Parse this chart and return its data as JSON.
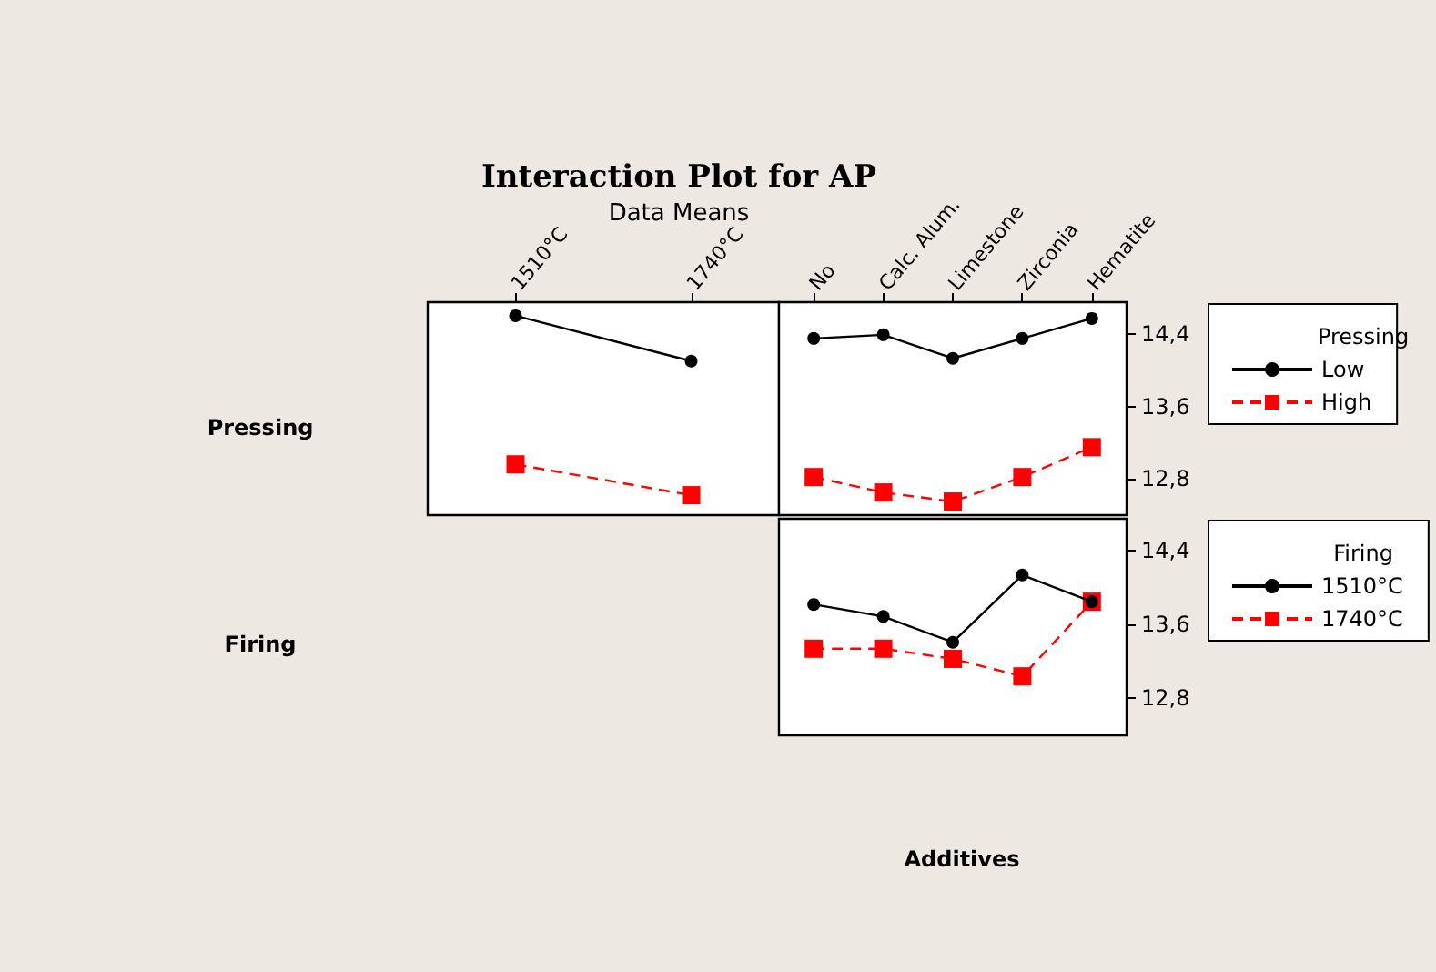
{
  "chart_data": [
    {
      "type": "line",
      "title": "Interaction Plot for AP",
      "subtitle": "Data Means",
      "ylabel": "Pressing",
      "categories": [
        "1510°C",
        "1740°C"
      ],
      "series": [
        {
          "color": "#000000",
          "marker": "circle",
          "line_style": "solid",
          "values": [
            14.6,
            14.1
          ]
        },
        {
          "color": "#ff0000",
          "marker": "square",
          "line_style": "dashed",
          "values": [
            12.96,
            12.62
          ]
        }
      ],
      "ylim": [
        12.4,
        14.75
      ],
      "tick_labels": "x",
      "grid": false,
      "legend": false
    },
    {
      "type": "line",
      "legend_title": "Pressing",
      "categories": [
        "No",
        "Calc. Alum.",
        "Limestone",
        "Zirconia",
        "Hematite"
      ],
      "series": [
        {
          "name": "Low",
          "color": "#000000",
          "marker": "circle",
          "line_style": "solid",
          "values": [
            14.35,
            14.39,
            14.13,
            14.35,
            14.57
          ]
        },
        {
          "name": "High",
          "color": "#ff0000",
          "marker": "square",
          "line_style": "dashed",
          "values": [
            12.82,
            12.65,
            12.55,
            12.82,
            13.15
          ]
        }
      ],
      "ylim": [
        12.4,
        14.75
      ],
      "yticks": [
        {
          "value": 12.8,
          "label": "12,8"
        },
        {
          "value": 13.6,
          "label": "13,6"
        },
        {
          "value": 14.4,
          "label": "14,4"
        }
      ],
      "grid": false,
      "legend": "right"
    },
    {
      "type": "line",
      "ylabel": "Firing",
      "xlabel": "Additives",
      "legend_title": "Firing",
      "categories": [
        null,
        null,
        null,
        null,
        null
      ],
      "series": [
        {
          "name": "1510°C",
          "color": "#000000",
          "marker": "circle",
          "line_style": "solid",
          "values": [
            13.82,
            13.69,
            13.41,
            14.14,
            13.85
          ]
        },
        {
          "name": "1740°C",
          "color": "#ff0000",
          "marker": "square",
          "line_style": "dashed",
          "values": [
            13.34,
            13.34,
            13.23,
            13.04,
            13.85
          ]
        }
      ],
      "ylim": [
        12.4,
        14.75
      ],
      "yticks": [
        {
          "value": 12.8,
          "label": "12,8"
        },
        {
          "value": 13.6,
          "label": "13,6"
        },
        {
          "value": 14.4,
          "label": "14,4"
        }
      ],
      "tick_labels": "y",
      "grid": false,
      "legend": "right"
    }
  ]
}
